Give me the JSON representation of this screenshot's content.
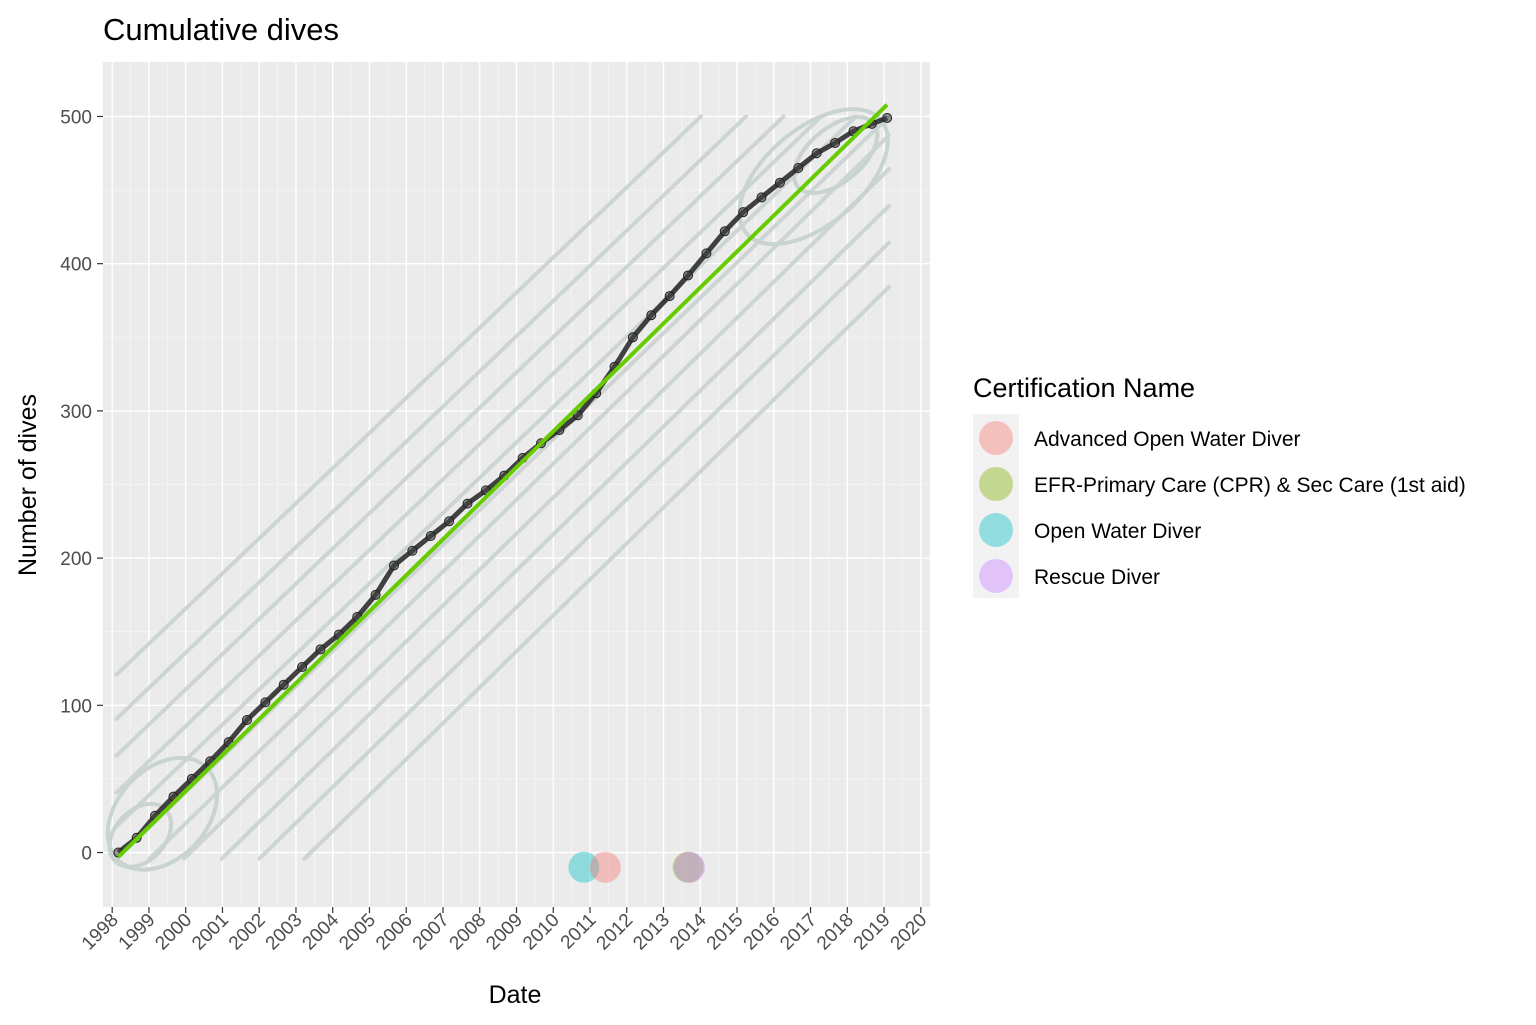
{
  "chart_data": {
    "type": "scatter",
    "title": "Cumulative dives",
    "xlabel": "Date",
    "ylabel": "Number of dives",
    "x_ticks": [
      "1998",
      "1999",
      "2000",
      "2001",
      "2002",
      "2003",
      "2004",
      "2005",
      "2006",
      "2007",
      "2008",
      "2009",
      "2010",
      "2011",
      "2012",
      "2013",
      "2014",
      "2015",
      "2016",
      "2017",
      "2018",
      "2019",
      "2020"
    ],
    "y_ticks": [
      0,
      100,
      200,
      300,
      400,
      500
    ],
    "xlim": [
      "1997-10-01",
      "2020-04-01"
    ],
    "ylim": [
      -37,
      537
    ],
    "grid": true,
    "panel_background": "#ebebeb",
    "series": [
      {
        "kind": "points",
        "color": "#333333",
        "x": [
          "1998-03-01",
          "1998-09-01",
          "1999-03-01",
          "1999-09-01",
          "2000-03-01",
          "2000-09-01",
          "2001-03-01",
          "2001-09-01",
          "2002-03-01",
          "2002-09-01",
          "2003-03-01",
          "2003-09-01",
          "2004-03-01",
          "2004-09-01",
          "2005-03-01",
          "2005-09-01",
          "2006-03-01",
          "2006-09-01",
          "2007-03-01",
          "2007-09-01",
          "2008-03-01",
          "2008-09-01",
          "2009-03-01",
          "2009-09-01",
          "2010-03-01",
          "2010-09-01",
          "2011-03-01",
          "2011-09-01",
          "2012-03-01",
          "2012-09-01",
          "2013-03-01",
          "2013-09-01",
          "2014-03-01",
          "2014-09-01",
          "2015-03-01",
          "2015-09-01",
          "2016-03-01",
          "2016-09-01",
          "2017-03-01",
          "2017-09-01",
          "2018-03-01",
          "2018-09-01",
          "2019-02-01"
        ],
        "y": [
          0,
          10,
          25,
          38,
          50,
          62,
          75,
          90,
          102,
          114,
          126,
          138,
          148,
          160,
          175,
          195,
          205,
          215,
          225,
          237,
          246,
          256,
          268,
          278,
          287,
          297,
          312,
          330,
          350,
          365,
          378,
          392,
          407,
          422,
          435,
          445,
          455,
          465,
          475,
          482,
          490,
          495,
          499
        ]
      },
      {
        "kind": "trend-line",
        "color": "#66cc00",
        "x": [
          "1998-03-01",
          "2019-02-01"
        ],
        "y": [
          -3,
          508
        ]
      }
    ],
    "certification_points": [
      {
        "name": "Open Water Diver",
        "x": "2010-11-01",
        "y": -10,
        "color": "#00BFC4"
      },
      {
        "name": "Advanced Open Water Diver",
        "x": "2011-06-01",
        "y": -10,
        "color": "#F8766D"
      },
      {
        "name": "EFR-Primary Care (CPR) & Sec Care (1st aid)",
        "x": "2013-09-01",
        "y": -10,
        "color": "#7CAE00"
      },
      {
        "name": "Rescue Diver",
        "x": "2013-09-15",
        "y": -10,
        "color": "#C77CFF"
      }
    ],
    "contour_levels": [
      {
        "offset": 0,
        "color": "#c9d3d0"
      },
      {
        "offset": 22,
        "color": "#c9d3d0"
      },
      {
        "offset": 45,
        "color": "#c9d3d0"
      },
      {
        "offset": 70,
        "color": "#c9d3d0"
      },
      {
        "offset": 95,
        "color": "#c9d3d0"
      },
      {
        "offset": 125,
        "color": "#c9d3d0"
      },
      {
        "offset": -22,
        "color": "#c9d3d0"
      },
      {
        "offset": -45,
        "color": "#c9d3d0"
      },
      {
        "offset": -70,
        "color": "#c9d3d0"
      },
      {
        "offset": -95,
        "color": "#c9d3d0"
      },
      {
        "offset": -125,
        "color": "#c9d3d0"
      }
    ],
    "legend": {
      "title": "Certification Name",
      "placement": "right",
      "items": [
        {
          "label": "Advanced Open Water Diver",
          "color": "#F8766D"
        },
        {
          "label": "EFR-Primary Care (CPR) & Sec Care (1st aid)",
          "color": "#7CAE00"
        },
        {
          "label": "Open Water Diver",
          "color": "#00BFC4"
        },
        {
          "label": "Rescue Diver",
          "color": "#C77CFF"
        }
      ]
    }
  }
}
